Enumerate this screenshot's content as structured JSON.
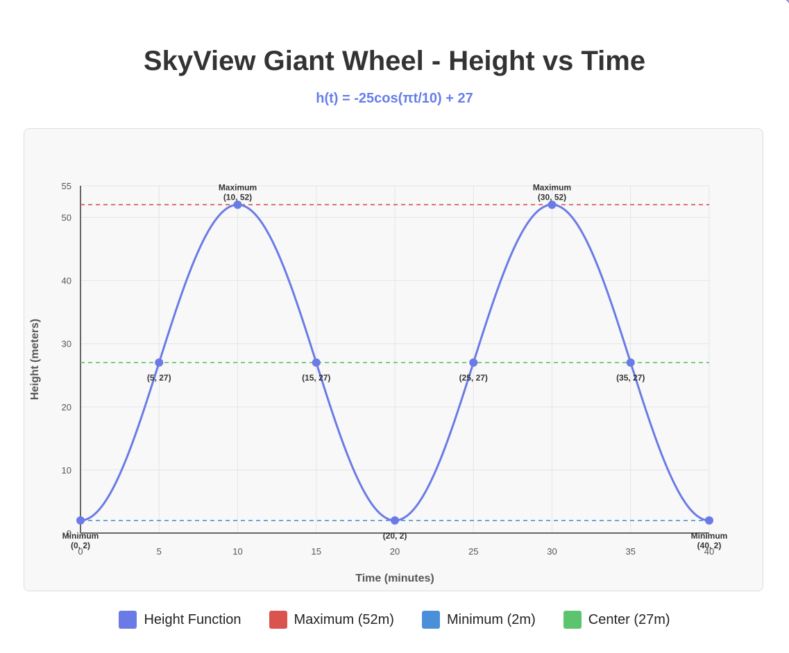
{
  "header": {
    "title": "SkyView Giant Wheel - Height vs Time",
    "subtitle": "h(t) = -25cos(πt/10) + 27"
  },
  "chart_data": {
    "type": "line",
    "xlabel": "Time (minutes)",
    "ylabel": "Height (meters)",
    "xlim": [
      0,
      40
    ],
    "ylim": [
      0,
      55
    ],
    "x_ticks": [
      0,
      5,
      10,
      15,
      20,
      25,
      30,
      35,
      40
    ],
    "y_ticks": [
      0,
      10,
      20,
      30,
      40,
      50,
      55
    ],
    "grid": true,
    "legend_position": "bottom",
    "series": [
      {
        "name": "Height Function",
        "function": "h(t) = -25cos(πt/10) + 27",
        "amplitude": 25,
        "midline": 27,
        "period": 20,
        "color": "#6b7be6"
      }
    ],
    "key_points": [
      {
        "x": 0,
        "y": 2,
        "label": "(0, 2)",
        "tag": "Minimum"
      },
      {
        "x": 5,
        "y": 27,
        "label": "(5, 27)",
        "tag": ""
      },
      {
        "x": 10,
        "y": 52,
        "label": "(10, 52)",
        "tag": "Maximum"
      },
      {
        "x": 15,
        "y": 27,
        "label": "(15, 27)",
        "tag": ""
      },
      {
        "x": 20,
        "y": 2,
        "label": "(20, 2)",
        "tag": ""
      },
      {
        "x": 25,
        "y": 27,
        "label": "(25, 27)",
        "tag": ""
      },
      {
        "x": 30,
        "y": 52,
        "label": "(30, 52)",
        "tag": "Maximum"
      },
      {
        "x": 35,
        "y": 27,
        "label": "(35, 27)",
        "tag": ""
      },
      {
        "x": 40,
        "y": 2,
        "label": "(40, 2)",
        "tag": "Minimum"
      }
    ],
    "reference_lines": [
      {
        "name": "Maximum (52m)",
        "y": 52,
        "color": "#d9534f"
      },
      {
        "name": "Minimum (2m)",
        "y": 2,
        "color": "#4a90d9"
      },
      {
        "name": "Center (27m)",
        "y": 27,
        "color": "#5cc46c"
      }
    ]
  },
  "legend": {
    "items": [
      {
        "label": "Height Function",
        "color": "#6b7be6"
      },
      {
        "label": "Maximum (52m)",
        "color": "#d9534f"
      },
      {
        "label": "Minimum (2m)",
        "color": "#4a90d9"
      },
      {
        "label": "Center (27m)",
        "color": "#5cc46c"
      }
    ]
  }
}
